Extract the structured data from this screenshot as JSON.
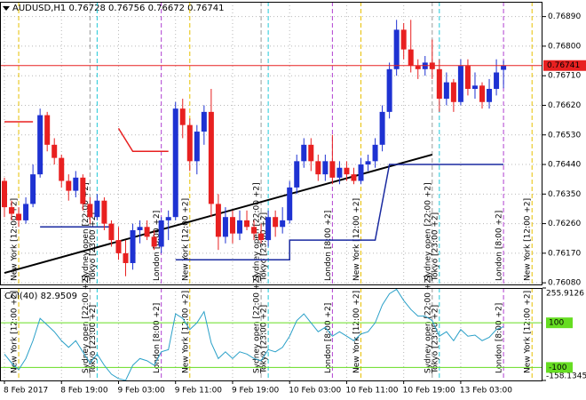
{
  "chart_data": [
    {
      "type": "candlestick",
      "title": "AUDUSD,H1",
      "up_color": "#1e32d2",
      "down_color": "#e82020",
      "last_color": "#e82020",
      "grid": true,
      "categories": [
        "8 Feb 2017",
        null,
        null,
        null,
        null,
        null,
        null,
        null,
        "8 Feb 19:00",
        null,
        null,
        null,
        null,
        null,
        null,
        null,
        "9 Feb 03:00",
        null,
        null,
        null,
        null,
        null,
        null,
        null,
        "9 Feb 11:00",
        null,
        null,
        null,
        null,
        null,
        null,
        null,
        "9 Feb 19:00",
        null,
        null,
        null,
        null,
        null,
        null,
        null,
        "10 Feb 03:00",
        null,
        null,
        null,
        null,
        null,
        null,
        null,
        "10 Feb 11:00",
        null,
        null,
        null,
        null,
        null,
        null,
        null,
        "10 Feb 19:00",
        null,
        null,
        null,
        null,
        null,
        null,
        null,
        "13 Feb 03:00",
        null,
        null,
        null,
        null,
        null,
        null
      ],
      "open": [
        0.7639,
        0.7631,
        0.7629,
        0.7627,
        0.7632,
        0.7641,
        0.7659,
        0.765,
        0.7646,
        0.7639,
        0.7636,
        0.764,
        0.7632,
        0.7628,
        0.7633,
        0.7626,
        0.7621,
        0.7617,
        0.7614,
        0.7624,
        0.7625,
        0.7622,
        0.7619,
        0.7627,
        0.7628,
        0.7661,
        0.7656,
        0.7645,
        0.7654,
        0.766,
        0.7632,
        0.7622,
        0.7628,
        0.7623,
        0.7627,
        0.7625,
        0.7623,
        0.7621,
        0.7628,
        0.7625,
        0.7627,
        0.7637,
        0.7645,
        0.765,
        0.7645,
        0.7641,
        0.7645,
        0.764,
        0.7643,
        0.7641,
        0.7639,
        0.7644,
        0.7645,
        0.765,
        0.766,
        0.7673,
        0.7685,
        0.7679,
        0.7674,
        0.7673,
        0.7675,
        0.7673,
        0.7664,
        0.7669,
        0.7663,
        0.7674,
        0.7667,
        0.7668,
        0.7663,
        0.7667,
        0.76728
      ],
      "high": [
        0.764,
        0.7633,
        0.7631,
        0.7634,
        0.7644,
        0.7661,
        0.766,
        0.7652,
        0.7647,
        0.7641,
        0.7642,
        0.7641,
        0.7634,
        0.7635,
        0.7634,
        0.7627,
        0.7625,
        0.7621,
        0.7626,
        0.7627,
        0.7627,
        0.7624,
        0.7628,
        0.763,
        0.7663,
        0.7664,
        0.7658,
        0.7656,
        0.7662,
        0.7667,
        0.7635,
        0.7631,
        0.763,
        0.763,
        0.763,
        0.7627,
        0.7626,
        0.763,
        0.763,
        0.7631,
        0.7639,
        0.7647,
        0.7652,
        0.7652,
        0.7647,
        0.7647,
        0.7653,
        0.7645,
        0.7645,
        0.7643,
        0.7646,
        0.7647,
        0.7652,
        0.7662,
        0.7675,
        0.7688,
        0.7687,
        0.7688,
        0.7676,
        0.7677,
        0.7682,
        0.7676,
        0.7672,
        0.767,
        0.7676,
        0.7676,
        0.7672,
        0.7669,
        0.767,
        0.7676,
        0.76756
      ],
      "low": [
        0.7628,
        0.7627,
        0.7625,
        0.7626,
        0.7631,
        0.764,
        0.7648,
        0.7644,
        0.7637,
        0.7633,
        0.7634,
        0.763,
        0.7626,
        0.7627,
        0.7624,
        0.7619,
        0.7615,
        0.761,
        0.7612,
        0.762,
        0.7621,
        0.7618,
        0.7617,
        0.7621,
        0.7627,
        0.7652,
        0.7642,
        0.7641,
        0.765,
        0.7628,
        0.7618,
        0.762,
        0.762,
        0.7621,
        0.7624,
        0.7621,
        0.762,
        0.7619,
        0.7622,
        0.7623,
        0.7626,
        0.7635,
        0.7643,
        0.7642,
        0.7639,
        0.7639,
        0.7638,
        0.7638,
        0.7639,
        0.7638,
        0.7638,
        0.7642,
        0.7643,
        0.7648,
        0.7658,
        0.7671,
        0.7676,
        0.7672,
        0.767,
        0.7671,
        0.767,
        0.766,
        0.7662,
        0.766,
        0.7662,
        0.7665,
        0.7664,
        0.7661,
        0.7661,
        0.7665,
        0.76672
      ],
      "close": [
        0.7631,
        0.7629,
        0.7627,
        0.7632,
        0.7641,
        0.7659,
        0.765,
        0.7646,
        0.7639,
        0.7636,
        0.764,
        0.7632,
        0.7628,
        0.7633,
        0.7626,
        0.7621,
        0.7617,
        0.7614,
        0.7624,
        0.7625,
        0.7622,
        0.7619,
        0.7627,
        0.7628,
        0.7661,
        0.7656,
        0.7645,
        0.7654,
        0.766,
        0.7632,
        0.7622,
        0.7628,
        0.7623,
        0.7627,
        0.7625,
        0.7623,
        0.7621,
        0.7628,
        0.7625,
        0.7627,
        0.7637,
        0.7645,
        0.765,
        0.7645,
        0.7641,
        0.7645,
        0.764,
        0.7643,
        0.7641,
        0.7639,
        0.7644,
        0.7645,
        0.765,
        0.766,
        0.7673,
        0.7685,
        0.7679,
        0.7674,
        0.7673,
        0.7675,
        0.7673,
        0.7664,
        0.7669,
        0.7663,
        0.7674,
        0.7667,
        0.7668,
        0.7663,
        0.7667,
        0.7672,
        0.76741
      ],
      "ylim": [
        0.76075,
        0.76935
      ],
      "yticks": [
        {
          "value": 0.7689,
          "label": "0.76890"
        },
        {
          "value": 0.768,
          "label": "0.76800"
        },
        {
          "value": 0.7671,
          "label": "0.76710"
        },
        {
          "value": 0.7662,
          "label": "0.76620"
        },
        {
          "value": 0.7653,
          "label": "0.76530"
        },
        {
          "value": 0.7644,
          "label": "0.76440"
        },
        {
          "value": 0.7635,
          "label": "0.76350"
        },
        {
          "value": 0.7626,
          "label": "0.76260"
        },
        {
          "value": 0.7617,
          "label": "0.76170"
        },
        {
          "value": 0.7608,
          "label": "0.76080"
        }
      ],
      "lines": [
        {
          "color": "#000000",
          "x": [
            0,
            60
          ],
          "y": [
            0.7611,
            0.7647
          ]
        },
        {
          "color": "#1a2aa0",
          "x": [
            5,
            15
          ],
          "y": [
            0.7625,
            0.7625
          ]
        },
        {
          "color": "#1a2aa0",
          "x": [
            24,
            40,
            40,
            52,
            54,
            70
          ],
          "y": [
            0.7615,
            0.7615,
            0.7621,
            0.7621,
            0.7644,
            0.7644
          ]
        },
        {
          "color": "#e82020",
          "x": [
            0,
            4
          ],
          "y": [
            0.7657,
            0.7657
          ]
        },
        {
          "color": "#e82020",
          "x": [
            16,
            18,
            23
          ],
          "y": [
            0.7655,
            0.7648,
            0.7648
          ]
        }
      ],
      "sessions": [
        {
          "label": "New York [12:00 +2]",
          "color": "#e8c000",
          "bars": [
            2,
            26,
            50,
            74
          ]
        },
        {
          "label": "Sydney open [22:00 +2]",
          "color": "#9a9a9a",
          "bars": [
            12,
            36,
            60
          ]
        },
        {
          "label": "Tokyo [23:00 +2]",
          "color": "#20c8d8",
          "bars": [
            13,
            37,
            61
          ]
        },
        {
          "label": "London [8:00 +2]",
          "color": "#b040d0",
          "bars": [
            22,
            46,
            70
          ]
        }
      ]
    },
    {
      "type": "line",
      "title": "CCI(40)",
      "color": "#2aa0c8",
      "level_color": "#66dd22",
      "values": [
        -40,
        -80,
        -110,
        -60,
        20,
        120,
        90,
        60,
        20,
        -10,
        20,
        -30,
        -80,
        -40,
        -90,
        -130,
        -150,
        -158,
        -90,
        -60,
        -70,
        -90,
        -30,
        -20,
        140,
        120,
        70,
        100,
        150,
        10,
        -60,
        -30,
        -60,
        -30,
        -40,
        -60,
        -70,
        -20,
        -30,
        -10,
        40,
        110,
        140,
        100,
        60,
        80,
        40,
        60,
        40,
        20,
        50,
        60,
        100,
        180,
        230,
        250,
        200,
        160,
        130,
        130,
        110,
        40,
        60,
        20,
        70,
        40,
        45,
        20,
        35,
        70,
        82.9509
      ],
      "ylim": [
        -158.1345,
        255.9126
      ],
      "yticks": [
        255.9126,
        -158.1345
      ],
      "levels": [
        100,
        -100
      ]
    }
  ]
}
